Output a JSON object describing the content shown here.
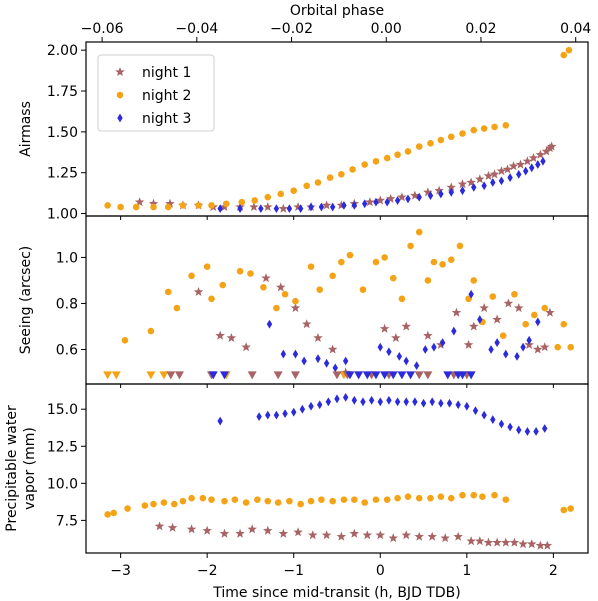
{
  "chart_data": {
    "type": "scatter",
    "top_axis": {
      "label": "Orbital phase",
      "range": [
        -0.0634,
        0.0426
      ],
      "ticks": [
        -0.06,
        -0.04,
        -0.02,
        0.0,
        0.02,
        0.04
      ],
      "tick_labels": [
        "−0.06",
        "−0.04",
        "−0.02",
        "0.00",
        "0.02",
        "0.04"
      ]
    },
    "x_axis": {
      "label": "Time since mid-transit (h, BJD TDB)",
      "range": [
        -3.4,
        2.4
      ],
      "ticks": [
        -3,
        -2,
        -1,
        0,
        1,
        2
      ],
      "tick_labels": [
        "−3",
        "−2",
        "−1",
        "0",
        "1",
        "2"
      ]
    },
    "legend": {
      "placement": "top-left",
      "entries": [
        {
          "name": "night 1",
          "color": "#a86464",
          "marker": "star"
        },
        {
          "name": "night 2",
          "color": "#f5a316",
          "marker": "circle"
        },
        {
          "name": "night 3",
          "color": "#2b2bdc",
          "marker": "diamond"
        }
      ]
    },
    "panels": [
      {
        "id": "airmass",
        "ylabel": [
          "Airmass"
        ],
        "ylim": [
          0.985,
          2.05
        ],
        "yticks": [
          1.0,
          1.25,
          1.5,
          1.75,
          2.0
        ],
        "ytick_labels": [
          "1.00",
          "1.25",
          "1.50",
          "1.75",
          "2.00"
        ],
        "series": [
          {
            "name": "night 1",
            "marker": "star",
            "color": "#a86464",
            "x": [
              -2.78,
              -2.62,
              -2.43,
              -2.28,
              -2.1,
              -1.93,
              -1.8,
              -1.62,
              -1.46,
              -1.3,
              -1.12,
              -0.95,
              -0.8,
              -0.62,
              -0.45,
              -0.3,
              -0.12,
              0.0,
              0.12,
              0.25,
              0.4,
              0.55,
              0.68,
              0.82,
              0.95,
              1.05,
              1.15,
              1.25,
              1.32,
              1.4,
              1.47,
              1.54,
              1.62,
              1.7,
              1.77,
              1.85,
              1.92,
              1.96,
              1.98
            ],
            "y": [
              1.07,
              1.06,
              1.06,
              1.05,
              1.05,
              1.04,
              1.04,
              1.04,
              1.04,
              1.04,
              1.03,
              1.04,
              1.04,
              1.05,
              1.05,
              1.06,
              1.07,
              1.08,
              1.09,
              1.1,
              1.11,
              1.13,
              1.14,
              1.16,
              1.18,
              1.19,
              1.21,
              1.23,
              1.24,
              1.26,
              1.27,
              1.29,
              1.3,
              1.32,
              1.34,
              1.36,
              1.38,
              1.4,
              1.41
            ]
          },
          {
            "name": "night 2",
            "marker": "circle",
            "color": "#f5a316",
            "x": [
              -3.15,
              -3.0,
              -2.82,
              -2.62,
              -2.45,
              -2.28,
              -2.1,
              -1.95,
              -1.78,
              -1.6,
              -1.45,
              -1.3,
              -1.15,
              -1.0,
              -0.85,
              -0.72,
              -0.58,
              -0.45,
              -0.32,
              -0.18,
              -0.05,
              0.08,
              0.2,
              0.32,
              0.45,
              0.58,
              0.7,
              0.82,
              0.95,
              1.08,
              1.2,
              1.32,
              1.45,
              2.12,
              2.18
            ],
            "y": [
              1.05,
              1.04,
              1.04,
              1.04,
              1.04,
              1.05,
              1.05,
              1.05,
              1.06,
              1.07,
              1.08,
              1.1,
              1.12,
              1.14,
              1.17,
              1.19,
              1.22,
              1.24,
              1.27,
              1.3,
              1.32,
              1.34,
              1.36,
              1.38,
              1.41,
              1.43,
              1.45,
              1.47,
              1.49,
              1.51,
              1.52,
              1.53,
              1.54,
              1.97,
              2.0
            ]
          },
          {
            "name": "night 3",
            "marker": "diamond",
            "color": "#2b2bdc",
            "x": [
              -1.85,
              -1.62,
              -1.38,
              -1.2,
              -1.05,
              -0.92,
              -0.8,
              -0.68,
              -0.55,
              -0.42,
              -0.3,
              -0.18,
              -0.05,
              0.08,
              0.2,
              0.32,
              0.45,
              0.58,
              0.7,
              0.82,
              0.95,
              1.08,
              1.2,
              1.3,
              1.4,
              1.5,
              1.6,
              1.68,
              1.75,
              1.82,
              1.88
            ],
            "y": [
              1.03,
              1.03,
              1.03,
              1.03,
              1.03,
              1.03,
              1.04,
              1.04,
              1.04,
              1.05,
              1.05,
              1.06,
              1.07,
              1.07,
              1.08,
              1.09,
              1.1,
              1.11,
              1.12,
              1.13,
              1.14,
              1.16,
              1.17,
              1.19,
              1.2,
              1.22,
              1.24,
              1.26,
              1.28,
              1.3,
              1.32
            ]
          }
        ]
      },
      {
        "id": "seeing",
        "ylabel": [
          "Seeing (arcsec)"
        ],
        "ylim": [
          0.45,
          1.18
        ],
        "yticks": [
          0.6,
          0.8,
          1.0
        ],
        "ytick_labels": [
          "0.6",
          "0.8",
          "1.0"
        ],
        "series": [
          {
            "name": "night 1",
            "marker": "star",
            "color": "#a86464",
            "x": [
              -2.1,
              -1.85,
              -1.72,
              -1.55,
              -1.32,
              -1.15,
              -0.98,
              -0.85,
              -0.72,
              -0.55,
              -0.4,
              0.05,
              0.18,
              0.3,
              0.55,
              0.7,
              0.88,
              1.02,
              1.08,
              1.2,
              1.35,
              1.48,
              1.6,
              1.72,
              1.82,
              1.9,
              1.96
            ],
            "y": [
              0.85,
              0.66,
              0.65,
              0.61,
              0.91,
              0.87,
              0.78,
              0.71,
              0.65,
              0.6,
              0.5,
              0.69,
              0.65,
              0.7,
              0.66,
              0.62,
              0.76,
              0.62,
              0.7,
              0.78,
              0.73,
              0.8,
              0.78,
              0.62,
              0.6,
              0.61,
              0.76
            ]
          },
          {
            "name": "night 2",
            "marker": "circle",
            "color": "#f5a316",
            "x": [
              -2.95,
              -2.65,
              -2.45,
              -2.35,
              -2.18,
              -2.0,
              -1.95,
              -1.82,
              -1.62,
              -1.5,
              -1.35,
              -1.2,
              -1.1,
              -0.98,
              -0.8,
              -0.7,
              -0.55,
              -0.45,
              -0.35,
              -0.2,
              -0.05,
              0.05,
              0.15,
              0.25,
              0.35,
              0.45,
              0.55,
              0.62,
              0.72,
              0.82,
              0.92,
              1.02,
              1.08,
              1.18,
              1.3,
              1.42,
              1.55,
              1.68,
              1.78,
              1.9,
              2.05,
              2.12,
              2.2
            ],
            "y": [
              0.64,
              0.68,
              0.85,
              0.78,
              0.92,
              0.96,
              0.82,
              0.88,
              0.94,
              0.93,
              0.87,
              0.78,
              0.84,
              0.81,
              0.96,
              0.86,
              0.92,
              0.98,
              1.01,
              0.86,
              0.98,
              1.0,
              0.91,
              0.82,
              1.05,
              1.11,
              0.9,
              0.98,
              0.97,
              0.99,
              1.05,
              0.82,
              0.9,
              0.72,
              0.83,
              0.66,
              0.84,
              0.71,
              0.75,
              0.78,
              0.61,
              0.71,
              0.61
            ]
          },
          {
            "name": "night 3",
            "marker": "diamond",
            "color": "#2b2bdc",
            "x": [
              -1.28,
              -1.12,
              -0.98,
              -0.88,
              -0.72,
              -0.62,
              -0.52,
              -0.4,
              0.0,
              0.1,
              0.22,
              0.3,
              0.42,
              0.52,
              0.62,
              0.72,
              0.85,
              1.05,
              1.15,
              1.28,
              1.35,
              1.45,
              1.58,
              1.65,
              1.72,
              1.82
            ],
            "y": [
              0.71,
              0.58,
              0.58,
              0.55,
              0.56,
              0.54,
              0.52,
              0.55,
              0.61,
              0.59,
              0.57,
              0.55,
              0.53,
              0.6,
              0.61,
              0.63,
              0.68,
              0.84,
              0.73,
              0.6,
              0.63,
              0.58,
              0.57,
              0.61,
              0.64,
              0.72
            ]
          }
        ],
        "limits": [
          {
            "name": "night 2",
            "color": "#f5a316",
            "x": [
              -3.15,
              -3.05,
              -2.65,
              -2.5,
              -1.78,
              -0.42,
              -0.25
            ]
          },
          {
            "name": "night 1",
            "color": "#a86464",
            "x": [
              -2.42,
              -2.32,
              -1.95,
              -1.48,
              -1.18,
              -0.98,
              -0.5,
              -0.38,
              -0.1,
              0.1,
              0.45,
              0.55,
              0.85,
              1.0
            ]
          },
          {
            "name": "night 3",
            "color": "#2b2bdc",
            "x": [
              -1.93,
              -1.8,
              -0.35,
              -0.25,
              -0.15,
              -0.05,
              0.05,
              0.15,
              0.25,
              0.35,
              0.78,
              0.9,
              0.95,
              1.05
            ]
          }
        ]
      },
      {
        "id": "pwv",
        "ylabel": [
          "Precipitable water",
          "vapor (mm)"
        ],
        "ylim": [
          5.3,
          16.7
        ],
        "yticks": [
          7.5,
          10.0,
          12.5,
          15.0
        ],
        "ytick_labels": [
          "7.5",
          "10.0",
          "12.5",
          "15.0"
        ],
        "series": [
          {
            "name": "night 1",
            "marker": "star",
            "color": "#a86464",
            "x": [
              -2.55,
              -2.4,
              -2.18,
              -2.0,
              -1.8,
              -1.62,
              -1.48,
              -1.3,
              -1.12,
              -0.95,
              -0.78,
              -0.62,
              -0.45,
              -0.3,
              -0.15,
              0.0,
              0.15,
              0.3,
              0.45,
              0.6,
              0.75,
              0.9,
              1.05,
              1.15,
              1.25,
              1.35,
              1.45,
              1.55,
              1.65,
              1.75,
              1.85,
              1.93
            ],
            "y": [
              7.1,
              7.0,
              6.9,
              6.8,
              6.6,
              6.6,
              6.9,
              6.8,
              6.6,
              6.7,
              6.5,
              6.5,
              6.4,
              6.6,
              6.5,
              6.5,
              6.3,
              6.5,
              6.4,
              6.4,
              6.3,
              6.4,
              6.1,
              6.1,
              6.0,
              6.0,
              6.0,
              6.0,
              5.9,
              5.9,
              5.8,
              5.8
            ]
          },
          {
            "name": "night 2",
            "marker": "circle",
            "color": "#f5a316",
            "x": [
              -3.15,
              -3.08,
              -2.92,
              -2.72,
              -2.62,
              -2.5,
              -2.38,
              -2.28,
              -2.18,
              -2.05,
              -1.95,
              -1.8,
              -1.68,
              -1.55,
              -1.42,
              -1.3,
              -1.18,
              -1.05,
              -0.92,
              -0.8,
              -0.68,
              -0.55,
              -0.42,
              -0.3,
              -0.18,
              -0.05,
              0.08,
              0.2,
              0.32,
              0.45,
              0.58,
              0.7,
              0.82,
              0.95,
              1.08,
              1.18,
              1.32,
              1.45,
              2.12,
              2.2
            ],
            "y": [
              7.9,
              8.0,
              8.3,
              8.5,
              8.6,
              8.7,
              8.6,
              8.8,
              9.0,
              9.0,
              8.9,
              8.8,
              8.9,
              8.7,
              8.9,
              8.8,
              8.7,
              8.8,
              8.6,
              8.8,
              8.9,
              8.8,
              8.9,
              8.9,
              8.7,
              8.9,
              8.9,
              9.0,
              9.1,
              9.0,
              9.0,
              9.1,
              9.0,
              9.2,
              9.2,
              9.1,
              9.2,
              8.9,
              8.2,
              8.3
            ]
          },
          {
            "name": "night 3",
            "marker": "diamond",
            "color": "#2b2bdc",
            "x": [
              -1.85,
              -1.4,
              -1.3,
              -1.2,
              -1.1,
              -1.0,
              -0.9,
              -0.8,
              -0.7,
              -0.6,
              -0.5,
              -0.4,
              -0.3,
              -0.2,
              -0.1,
              0.0,
              0.1,
              0.2,
              0.3,
              0.4,
              0.5,
              0.6,
              0.7,
              0.8,
              0.9,
              1.0,
              1.1,
              1.2,
              1.3,
              1.4,
              1.5,
              1.6,
              1.7,
              1.8,
              1.9
            ],
            "y": [
              14.2,
              14.5,
              14.6,
              14.6,
              14.7,
              14.8,
              15.0,
              15.2,
              15.3,
              15.5,
              15.7,
              15.8,
              15.6,
              15.5,
              15.6,
              15.5,
              15.6,
              15.5,
              15.5,
              15.5,
              15.4,
              15.5,
              15.4,
              15.4,
              15.3,
              15.2,
              14.9,
              14.6,
              14.3,
              14.0,
              13.8,
              13.6,
              13.5,
              13.5,
              13.7
            ]
          }
        ]
      }
    ]
  }
}
